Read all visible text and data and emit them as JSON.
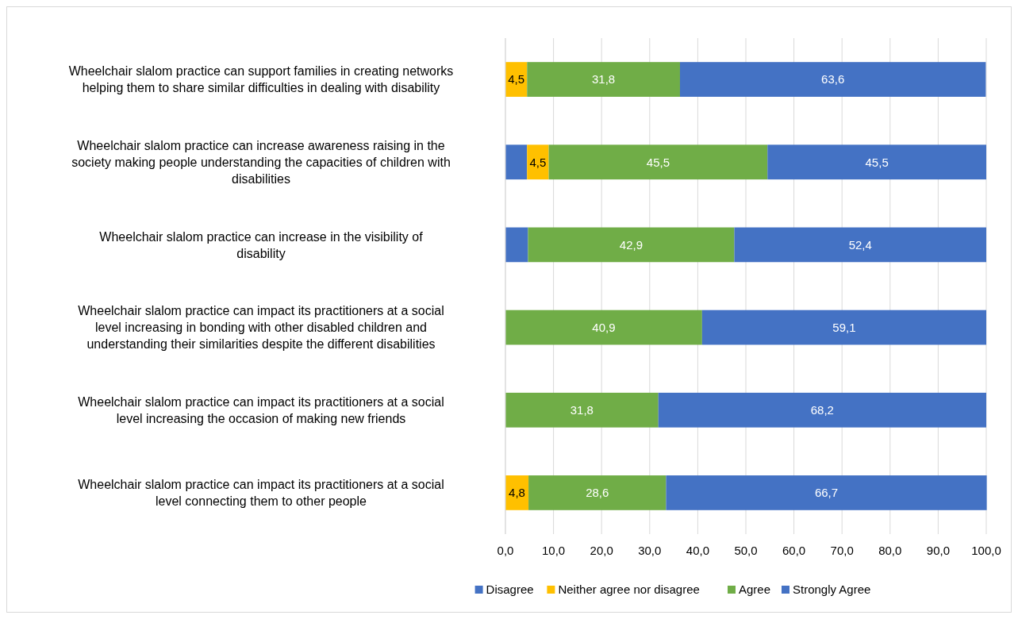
{
  "chart_data": {
    "type": "bar",
    "orientation": "horizontal",
    "stacked": true,
    "categories": [
      "Wheelchair slalom practice can support families in creating networks helping them to share similar difficulties in dealing with disability",
      "Wheelchair slalom practice can increase awareness raising in the society making people understanding the capacities of children with disabilities",
      "Wheelchair slalom practice can increase in the visibility of disability",
      "Wheelchair slalom practice can impact its practitioners at a social level increasing in bonding with other disabled children and understanding their similarities despite the different disabilities",
      "Wheelchair slalom practice can impact its practitioners at a social level increasing the occasion of making new friends",
      "Wheelchair slalom practice can impact its practitioners at a social level connecting them to other people"
    ],
    "series": [
      {
        "name": "Disagree",
        "color": "#4472c4",
        "values": [
          null,
          4.5,
          4.7,
          null,
          null,
          null
        ],
        "value_labels": [
          null,
          null,
          null,
          null,
          null,
          null
        ]
      },
      {
        "name": "Neither agree nor disagree",
        "color": "#ffc000",
        "values": [
          4.5,
          4.5,
          null,
          null,
          null,
          4.8
        ],
        "value_labels": [
          "4,5",
          "4,5",
          null,
          null,
          null,
          "4,8"
        ]
      },
      {
        "name": "Agree",
        "color": "#70ad47",
        "values": [
          31.8,
          45.5,
          42.9,
          40.9,
          31.8,
          28.6
        ],
        "value_labels": [
          "31,8",
          "45,5",
          "42,9",
          "40,9",
          "31,8",
          "28,6"
        ]
      },
      {
        "name": "Strongly Agree",
        "color": "#4472c4",
        "values": [
          63.6,
          45.5,
          52.4,
          59.1,
          68.2,
          66.7
        ],
        "value_labels": [
          "63,6",
          "45,5",
          "52,4",
          "59,1",
          "68,2",
          "66,7"
        ]
      }
    ],
    "xlim": [
      0,
      100
    ],
    "xticks": [
      {
        "value": 0,
        "label": "0,0"
      },
      {
        "value": 10,
        "label": "10,0"
      },
      {
        "value": 20,
        "label": "20,0"
      },
      {
        "value": 30,
        "label": "30,0"
      },
      {
        "value": 40,
        "label": "40,0"
      },
      {
        "value": 50,
        "label": "50,0"
      },
      {
        "value": 60,
        "label": "60,0"
      },
      {
        "value": 70,
        "label": "70,0"
      },
      {
        "value": 80,
        "label": "80,0"
      },
      {
        "value": 90,
        "label": "90,0"
      },
      {
        "value": 100,
        "label": "100,0"
      }
    ],
    "grid": "x",
    "legend": "bottom"
  }
}
